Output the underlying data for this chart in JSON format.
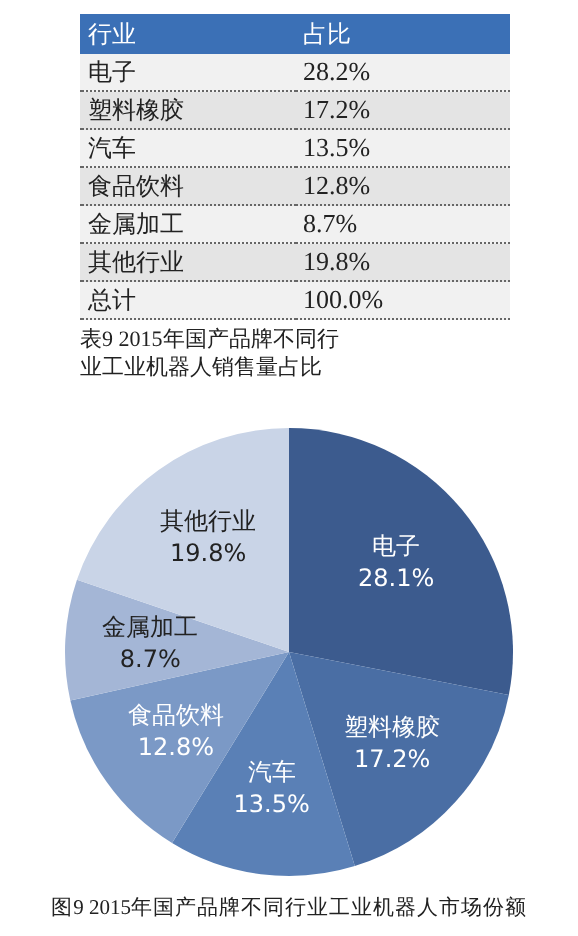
{
  "chart_data": [
    {
      "type": "other",
      "title": "表9 2015年国产品牌不同行业工业机器人销售量占比",
      "annotations": [
        "行业",
        "占比"
      ],
      "categories": [
        "电子",
        "塑料橡胶",
        "汽车",
        "食品饮料",
        "金属加工",
        "其他行业",
        "总计"
      ],
      "value_labels": [
        "28.2%",
        "17.2%",
        "13.5%",
        "12.8%",
        "8.7%",
        "19.8%",
        "100.0%"
      ]
    },
    {
      "type": "pie",
      "title": "图9 2015年国产品牌不同行业工业机器人市场份额",
      "categories": [
        "电子",
        "塑料橡胶",
        "汽车",
        "食品饮料",
        "金属加工",
        "其他行业"
      ],
      "values": [
        28.1,
        17.2,
        13.5,
        12.8,
        8.7,
        19.8
      ],
      "colors": [
        "#3c5b8e",
        "#4a6ea4",
        "#5a80b6",
        "#7b99c6",
        "#a4b6d6",
        "#c9d4e7"
      ],
      "value_labels": [
        "28.1%",
        "17.2%",
        "13.5%",
        "12.8%",
        "8.7%",
        "19.8%"
      ],
      "legend": false
    }
  ]
}
